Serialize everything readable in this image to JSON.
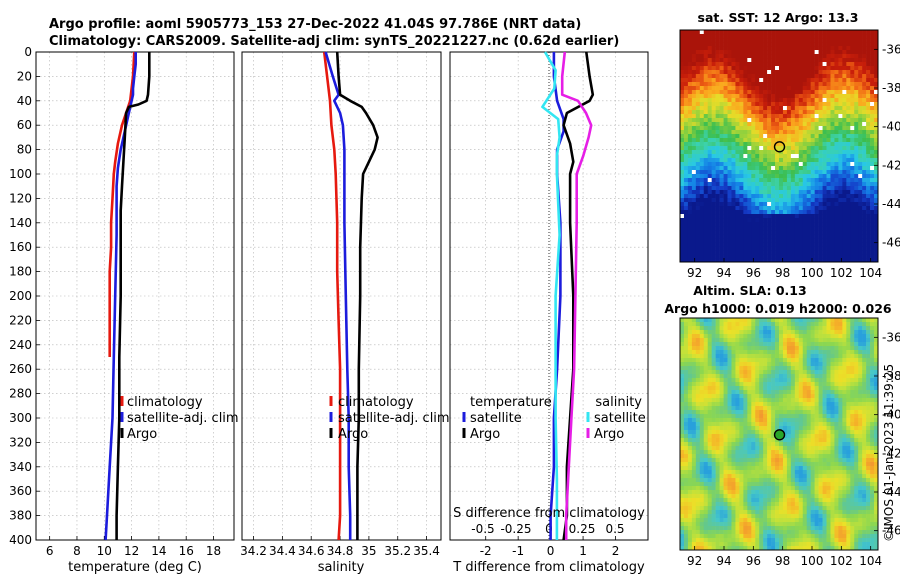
{
  "figure": {
    "title_line1": "Argo profile: aoml 5905773_153 27-Dec-2022 41.04S 97.786E (NRT data)",
    "title_line2": "Climatology: CARS2009. Satellite-adj clim: synTS_20221227.nc (0.62d earlier)",
    "credit": "©IMOS 01-Jan-2023 11:39:25"
  },
  "colors": {
    "climatology": "#e6190f",
    "satellite": "#1c1cdc",
    "argo": "#000000",
    "sat_salinity": "#33e6f2",
    "argo_salinity": "#e61ee6"
  },
  "chart_data": [
    {
      "id": "temperature",
      "type": "line",
      "xlabel": "temperature (deg C)",
      "ylabel": "depth",
      "xlim": [
        5,
        19.5
      ],
      "ylim": [
        400,
        0
      ],
      "xticks": [
        6,
        8,
        10,
        12,
        14,
        16,
        18
      ],
      "xtick_labels": [
        "6",
        "8",
        "10",
        "12",
        "14",
        "16",
        "18"
      ],
      "yticks": [
        0,
        20,
        40,
        60,
        80,
        100,
        120,
        140,
        160,
        180,
        200,
        220,
        240,
        260,
        280,
        300,
        320,
        340,
        360,
        380,
        400
      ],
      "ytick_labels": [
        "0",
        "20",
        "40",
        "60",
        "80",
        "100",
        "120",
        "140",
        "160",
        "180",
        "200",
        "220",
        "240",
        "260",
        "280",
        "300",
        "320",
        "340",
        "360",
        "380",
        "400"
      ],
      "grid": true,
      "legend": [
        "climatology",
        "satellite-adj. clim",
        "Argo"
      ],
      "series": [
        {
          "name": "climatology",
          "color_key": "climatology",
          "points": [
            [
              12.2,
              0
            ],
            [
              12.1,
              20
            ],
            [
              11.9,
              40
            ],
            [
              11.6,
              50
            ],
            [
              11.3,
              60
            ],
            [
              11.0,
              75
            ],
            [
              10.8,
              90
            ],
            [
              10.7,
              100
            ],
            [
              10.6,
              120
            ],
            [
              10.5,
              140
            ],
            [
              10.5,
              160
            ],
            [
              10.4,
              180
            ],
            [
              10.4,
              200
            ],
            [
              10.4,
              220
            ],
            [
              10.4,
              250
            ]
          ]
        },
        {
          "name": "satellite-adj. clim",
          "color_key": "satellite",
          "points": [
            [
              12.3,
              0
            ],
            [
              12.3,
              10
            ],
            [
              12.2,
              20
            ],
            [
              12.1,
              30
            ],
            [
              12.1,
              35
            ],
            [
              11.9,
              45
            ],
            [
              11.7,
              55
            ],
            [
              11.5,
              65
            ],
            [
              11.2,
              80
            ],
            [
              11.0,
              95
            ],
            [
              10.9,
              110
            ],
            [
              10.9,
              130
            ],
            [
              10.9,
              150
            ],
            [
              10.8,
              200
            ],
            [
              10.7,
              250
            ],
            [
              10.6,
              300
            ],
            [
              10.4,
              340
            ],
            [
              10.2,
              380
            ],
            [
              10.1,
              400
            ]
          ]
        },
        {
          "name": "Argo",
          "color_key": "argo",
          "points": [
            [
              13.3,
              0
            ],
            [
              13.3,
              20
            ],
            [
              13.2,
              35
            ],
            [
              13.1,
              40
            ],
            [
              12.5,
              43
            ],
            [
              11.8,
              45
            ],
            [
              11.6,
              50
            ],
            [
              11.5,
              70
            ],
            [
              11.4,
              90
            ],
            [
              11.3,
              110
            ],
            [
              11.2,
              130
            ],
            [
              11.2,
              150
            ],
            [
              11.2,
              200
            ],
            [
              11.1,
              250
            ],
            [
              11.1,
              300
            ],
            [
              11.0,
              340
            ],
            [
              10.9,
              380
            ],
            [
              10.9,
              400
            ]
          ]
        }
      ]
    },
    {
      "id": "salinity",
      "type": "line",
      "xlabel": "salinity",
      "ylabel": "depth",
      "xlim": [
        34.12,
        35.5
      ],
      "ylim": [
        400,
        0
      ],
      "xticks": [
        34.2,
        34.4,
        34.6,
        34.8,
        35,
        35.2,
        35.4
      ],
      "xtick_labels": [
        "34.2",
        "34.4",
        "34.6",
        "34.8",
        "35",
        "35.2",
        "35.4"
      ],
      "grid": true,
      "legend": [
        "climatology",
        "satellite-adj. clim",
        "Argo"
      ],
      "series": [
        {
          "name": "climatology",
          "color_key": "climatology",
          "points": [
            [
              34.69,
              0
            ],
            [
              34.71,
              20
            ],
            [
              34.73,
              40
            ],
            [
              34.74,
              60
            ],
            [
              34.76,
              80
            ],
            [
              34.77,
              100
            ],
            [
              34.78,
              140
            ],
            [
              34.78,
              180
            ],
            [
              34.79,
              220
            ],
            [
              34.8,
              260
            ],
            [
              34.8,
              300
            ],
            [
              34.8,
              340
            ],
            [
              34.8,
              380
            ],
            [
              34.79,
              400
            ]
          ]
        },
        {
          "name": "satellite-adj. clim",
          "color_key": "satellite",
          "points": [
            [
              34.7,
              0
            ],
            [
              34.75,
              20
            ],
            [
              34.79,
              35
            ],
            [
              34.76,
              40
            ],
            [
              34.8,
              50
            ],
            [
              34.82,
              60
            ],
            [
              34.83,
              80
            ],
            [
              34.83,
              100
            ],
            [
              34.83,
              140
            ],
            [
              34.84,
              200
            ],
            [
              34.85,
              260
            ],
            [
              34.86,
              300
            ],
            [
              34.86,
              340
            ],
            [
              34.87,
              380
            ],
            [
              34.87,
              400
            ]
          ]
        },
        {
          "name": "Argo",
          "color_key": "argo",
          "points": [
            [
              34.78,
              0
            ],
            [
              34.79,
              20
            ],
            [
              34.8,
              35
            ],
            [
              34.87,
              40
            ],
            [
              34.95,
              45
            ],
            [
              34.98,
              50
            ],
            [
              35.03,
              60
            ],
            [
              35.06,
              70
            ],
            [
              35.04,
              80
            ],
            [
              35.0,
              90
            ],
            [
              34.96,
              100
            ],
            [
              34.95,
              120
            ],
            [
              34.94,
              160
            ],
            [
              34.94,
              200
            ],
            [
              34.93,
              260
            ],
            [
              34.93,
              300
            ],
            [
              34.92,
              340
            ],
            [
              34.92,
              380
            ],
            [
              34.92,
              400
            ]
          ]
        }
      ]
    },
    {
      "id": "difference",
      "type": "line",
      "xlabel": "T difference from climatology",
      "xlabel_top": "S difference from climatology",
      "ylabel": "depth",
      "xlim": [
        -3.1,
        3.0
      ],
      "ylim": [
        400,
        0
      ],
      "xticks": [
        -2,
        -1,
        0,
        1,
        2
      ],
      "xtick_labels": [
        "-2",
        "-1",
        "0",
        "1",
        "2"
      ],
      "s_ticks": [
        -0.5,
        -0.25,
        0,
        0.25,
        0.5
      ],
      "s_tick_labels": [
        "-0.5",
        "-0.25",
        "0",
        "0.25",
        "0.5"
      ],
      "grid": true,
      "legend_left_title": "temperature",
      "legend_left": [
        "satellite",
        "Argo"
      ],
      "legend_right_title": "salinity",
      "legend_right": [
        "satellite",
        "Argo"
      ],
      "series": [
        {
          "name": "temperature satellite",
          "color_key": "satellite",
          "points": [
            [
              0.1,
              0
            ],
            [
              0.1,
              20
            ],
            [
              0.2,
              40
            ],
            [
              0.4,
              55
            ],
            [
              0.4,
              65
            ],
            [
              0.2,
              80
            ],
            [
              0.2,
              100
            ],
            [
              0.3,
              140
            ],
            [
              0.3,
              200
            ],
            [
              0.2,
              260
            ],
            [
              0.1,
              300
            ],
            [
              0.1,
              340
            ],
            [
              0.0,
              380
            ],
            [
              0.0,
              400
            ]
          ]
        },
        {
          "name": "temperature Argo",
          "color_key": "argo",
          "points": [
            [
              1.1,
              0
            ],
            [
              1.2,
              20
            ],
            [
              1.3,
              35
            ],
            [
              1.2,
              40
            ],
            [
              0.5,
              50
            ],
            [
              0.4,
              60
            ],
            [
              0.6,
              75
            ],
            [
              0.7,
              90
            ],
            [
              0.6,
              100
            ],
            [
              0.6,
              140
            ],
            [
              0.7,
              200
            ],
            [
              0.7,
              260
            ],
            [
              0.6,
              300
            ],
            [
              0.5,
              340
            ],
            [
              0.5,
              380
            ],
            [
              0.4,
              400
            ]
          ]
        },
        {
          "name": "salinity satellite",
          "color_key": "sat_salinity",
          "points": [
            [
              -0.03,
              0
            ],
            [
              0.05,
              15
            ],
            [
              0.04,
              30
            ],
            [
              -0.05,
              45
            ],
            [
              0.07,
              55
            ],
            [
              0.08,
              70
            ],
            [
              0.06,
              85
            ],
            [
              0.06,
              100
            ],
            [
              0.08,
              150
            ],
            [
              0.05,
              200
            ],
            [
              0.05,
              250
            ],
            [
              0.05,
              300
            ],
            [
              0.06,
              350
            ],
            [
              0.06,
              400
            ]
          ]
        },
        {
          "name": "salinity Argo",
          "color_key": "argo_salinity",
          "points": [
            [
              0.12,
              0
            ],
            [
              0.1,
              20
            ],
            [
              0.1,
              35
            ],
            [
              0.22,
              40
            ],
            [
              0.28,
              50
            ],
            [
              0.32,
              60
            ],
            [
              0.3,
              70
            ],
            [
              0.26,
              85
            ],
            [
              0.21,
              100
            ],
            [
              0.21,
              140
            ],
            [
              0.2,
              200
            ],
            [
              0.19,
              260
            ],
            [
              0.17,
              300
            ],
            [
              0.15,
              340
            ],
            [
              0.13,
              380
            ],
            [
              0.13,
              400
            ]
          ]
        }
      ]
    },
    {
      "id": "sst_map",
      "type": "heatmap",
      "title": "sat. SST: 12 Argo: 13.3",
      "xlim": [
        91,
        104.5
      ],
      "ylim": [
        -47,
        -35
      ],
      "xticks": [
        92,
        94,
        96,
        98,
        100,
        102,
        104
      ],
      "xtick_labels": [
        "92",
        "94",
        "96",
        "98",
        "100",
        "102",
        "104"
      ],
      "yticks": [
        -36,
        -38,
        -40,
        -42,
        -44,
        -46
      ],
      "ytick_labels": [
        "-36",
        "-38",
        "-40",
        "-42",
        "-44",
        "-46"
      ],
      "marker": {
        "lon": 97.786,
        "lat": -41.04
      }
    },
    {
      "id": "sla_map",
      "type": "heatmap",
      "title_line1": "Altim. SLA: 0.13",
      "title_line2": "Argo h1000: 0.019 h2000: 0.026",
      "xlim": [
        91,
        104.5
      ],
      "ylim": [
        -47,
        -35
      ],
      "xticks": [
        92,
        94,
        96,
        98,
        100,
        102,
        104
      ],
      "xtick_labels": [
        "92",
        "94",
        "96",
        "98",
        "100",
        "102",
        "104"
      ],
      "yticks": [
        -36,
        -38,
        -40,
        -42,
        -44,
        -46
      ],
      "ytick_labels": [
        "-36",
        "-38",
        "-40",
        "-42",
        "-44",
        "-46"
      ],
      "marker": {
        "lon": 97.786,
        "lat": -41.04
      }
    }
  ]
}
